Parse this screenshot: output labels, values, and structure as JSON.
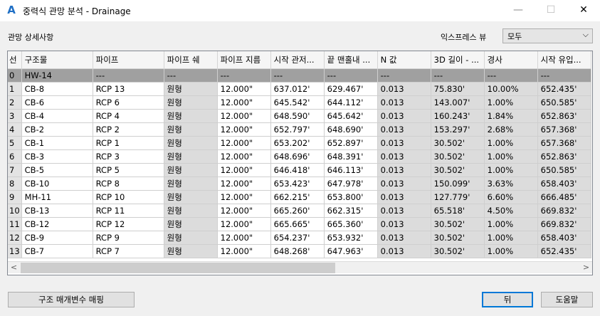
{
  "window": {
    "title": "중력식 관망 분석 - Drainage",
    "app_icon": "autocad-civil-a-icon",
    "minimize": "—",
    "maximize": "☐",
    "close": "✕"
  },
  "section_label": "관망 상세사항",
  "express_view": {
    "label": "익스프레스 뷰",
    "value": "모두"
  },
  "table": {
    "columns": [
      "선",
      "구조물",
      "파이프",
      "파이프 쉐",
      "파이프 지름",
      "시작 관저...",
      "끝 맨홀내 ...",
      "N 값",
      "3D 길이 - ...",
      "경사",
      "시작 유입..."
    ],
    "rows": [
      [
        "0",
        "HW-14",
        "---",
        "---",
        "---",
        "---",
        "---",
        "---",
        "---",
        "---",
        "---"
      ],
      [
        "1",
        "CB-8",
        "RCP 13",
        "원형",
        "12.000\"",
        "637.012'",
        "629.467'",
        "0.013",
        "75.830'",
        "10.00%",
        "652.435'"
      ],
      [
        "2",
        "CB-6",
        "RCP 6",
        "원형",
        "12.000\"",
        "645.542'",
        "644.112'",
        "0.013",
        "143.007'",
        "1.00%",
        "650.585'"
      ],
      [
        "3",
        "CB-4",
        "RCP 4",
        "원형",
        "12.000\"",
        "648.590'",
        "645.642'",
        "0.013",
        "160.243'",
        "1.84%",
        "652.863'"
      ],
      [
        "4",
        "CB-2",
        "RCP 2",
        "원형",
        "12.000\"",
        "652.797'",
        "648.690'",
        "0.013",
        "153.297'",
        "2.68%",
        "657.368'"
      ],
      [
        "5",
        "CB-1",
        "RCP 1",
        "원형",
        "12.000\"",
        "653.202'",
        "652.897'",
        "0.013",
        "30.502'",
        "1.00%",
        "657.368'"
      ],
      [
        "6",
        "CB-3",
        "RCP 3",
        "원형",
        "12.000\"",
        "648.696'",
        "648.391'",
        "0.013",
        "30.502'",
        "1.00%",
        "652.863'"
      ],
      [
        "7",
        "CB-5",
        "RCP 5",
        "원형",
        "12.000\"",
        "646.418'",
        "646.113'",
        "0.013",
        "30.502'",
        "1.00%",
        "650.585'"
      ],
      [
        "8",
        "CB-10",
        "RCP 8",
        "원형",
        "12.000\"",
        "653.423'",
        "647.978'",
        "0.013",
        "150.099'",
        "3.63%",
        "658.403'"
      ],
      [
        "9",
        "MH-11",
        "RCP 10",
        "원형",
        "12.000\"",
        "662.215'",
        "653.800'",
        "0.013",
        "127.779'",
        "6.60%",
        "666.485'"
      ],
      [
        "10",
        "CB-13",
        "RCP 11",
        "원형",
        "12.000\"",
        "665.260'",
        "662.315'",
        "0.013",
        "65.518'",
        "4.50%",
        "669.832'"
      ],
      [
        "11",
        "CB-12",
        "RCP 12",
        "원형",
        "12.000\"",
        "665.665'",
        "665.360'",
        "0.013",
        "30.502'",
        "1.00%",
        "669.832'"
      ],
      [
        "12",
        "CB-9",
        "RCP 9",
        "원형",
        "12.000\"",
        "654.237'",
        "653.932'",
        "0.013",
        "30.502'",
        "1.00%",
        "658.403'"
      ],
      [
        "13",
        "CB-7",
        "RCP 7",
        "원형",
        "12.000\"",
        "648.268'",
        "647.963'",
        "0.013",
        "30.502'",
        "1.00%",
        "652.435'"
      ]
    ],
    "scroll_left": "<",
    "scroll_right": ">"
  },
  "buttons": {
    "map_params": "구조 매개변수 매핑",
    "back": "뒤",
    "help": "도움말"
  }
}
